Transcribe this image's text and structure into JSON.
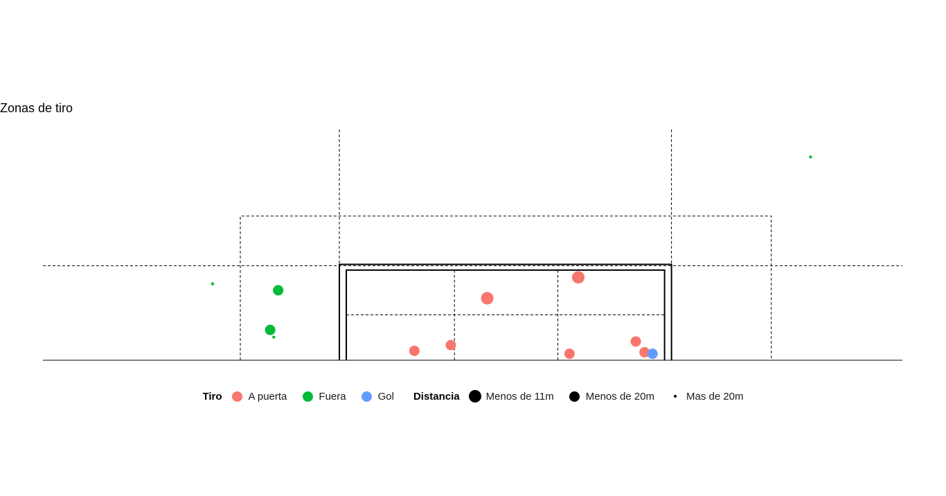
{
  "chart_data": {
    "type": "scatter",
    "title": "Zonas de tiro",
    "xlabel": "",
    "ylabel": "",
    "xlim": [
      -5.9,
      5.9
    ],
    "ylim": [
      0,
      3.2
    ],
    "grid": false,
    "legend_position": "bottom",
    "goal": {
      "x": [
        -1.83,
        2.73
      ],
      "crossbar_height": 1.33,
      "inner_height": 1.25
    },
    "reference_lines": {
      "vertical_dashed": [
        -1.83,
        2.73
      ],
      "box_dashed": {
        "x": [
          -3.19,
          4.1
        ],
        "height": 2.0
      },
      "horizontal_dashed": 1.31,
      "goal_grid": {
        "x": [
          -0.25,
          1.17
        ],
        "y": 0.63
      }
    },
    "color_legend": {
      "title": "Tiro",
      "entries": [
        {
          "label": "A puerta",
          "color": "#F8766D"
        },
        {
          "label": "Fuera",
          "color": "#00BA38"
        },
        {
          "label": "Gol",
          "color": "#619CFF"
        }
      ]
    },
    "size_legend": {
      "title": "Distancia",
      "entries": [
        {
          "label": "Menos de 11m",
          "size": "large"
        },
        {
          "label": "Menos de 20m",
          "size": "medium"
        },
        {
          "label": "Mas de 20m",
          "size": "small"
        }
      ]
    },
    "series": [
      {
        "name": "A puerta",
        "color": "#F8766D",
        "points": [
          {
            "x": 0.2,
            "y": 0.86,
            "size": "large"
          },
          {
            "x": 1.45,
            "y": 1.15,
            "size": "large"
          },
          {
            "x": -0.8,
            "y": 0.13,
            "size": "medium"
          },
          {
            "x": -0.3,
            "y": 0.21,
            "size": "medium"
          },
          {
            "x": 1.33,
            "y": 0.09,
            "size": "medium"
          },
          {
            "x": 2.24,
            "y": 0.26,
            "size": "medium"
          },
          {
            "x": 2.36,
            "y": 0.11,
            "size": "medium"
          }
        ]
      },
      {
        "name": "Fuera",
        "color": "#00BA38",
        "points": [
          {
            "x": -2.67,
            "y": 0.97,
            "size": "medium"
          },
          {
            "x": -2.78,
            "y": 0.42,
            "size": "medium"
          },
          {
            "x": -2.73,
            "y": 0.32,
            "size": "small"
          },
          {
            "x": -3.57,
            "y": 1.06,
            "size": "small"
          },
          {
            "x": 4.64,
            "y": 2.82,
            "size": "small"
          }
        ]
      },
      {
        "name": "Gol",
        "color": "#619CFF",
        "points": [
          {
            "x": 2.47,
            "y": 0.09,
            "size": "medium"
          }
        ]
      }
    ]
  }
}
